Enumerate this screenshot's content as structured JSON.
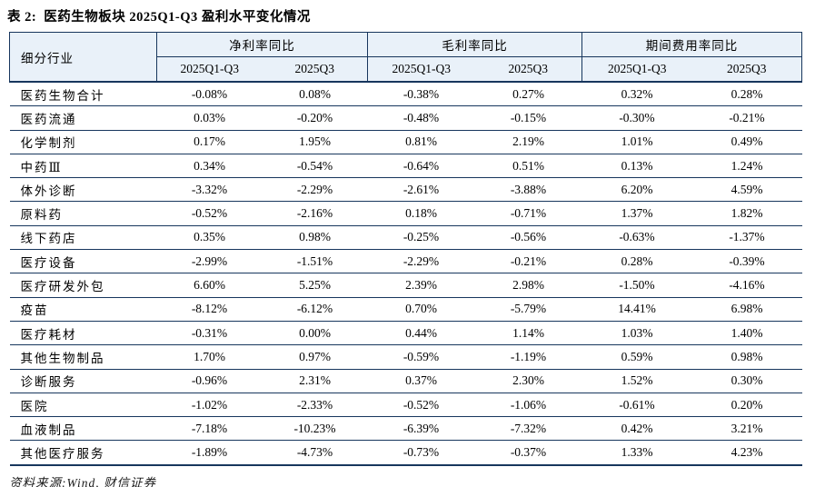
{
  "title": {
    "prefix": "表 2:",
    "text": "医药生物板块 2025Q1-Q3 盈利水平变化情况"
  },
  "table": {
    "row_header": "细分行业",
    "groups": [
      {
        "label": "净利率同比",
        "sub": [
          "2025Q1-Q3",
          "2025Q3"
        ]
      },
      {
        "label": "毛利率同比",
        "sub": [
          "2025Q1-Q3",
          "2025Q3"
        ]
      },
      {
        "label": "期间费用率同比",
        "sub": [
          "2025Q1-Q3",
          "2025Q3"
        ]
      }
    ],
    "rows": [
      {
        "label": "医药生物合计",
        "values": [
          "-0.08%",
          "0.08%",
          "-0.38%",
          "0.27%",
          "0.32%",
          "0.28%"
        ]
      },
      {
        "label": "医药流通",
        "values": [
          "0.03%",
          "-0.20%",
          "-0.48%",
          "-0.15%",
          "-0.30%",
          "-0.21%"
        ]
      },
      {
        "label": "化学制剂",
        "values": [
          "0.17%",
          "1.95%",
          "0.81%",
          "2.19%",
          "1.01%",
          "0.49%"
        ]
      },
      {
        "label": "中药Ⅲ",
        "values": [
          "0.34%",
          "-0.54%",
          "-0.64%",
          "0.51%",
          "0.13%",
          "1.24%"
        ]
      },
      {
        "label": "体外诊断",
        "values": [
          "-3.32%",
          "-2.29%",
          "-2.61%",
          "-3.88%",
          "6.20%",
          "4.59%"
        ]
      },
      {
        "label": "原料药",
        "values": [
          "-0.52%",
          "-2.16%",
          "0.18%",
          "-0.71%",
          "1.37%",
          "1.82%"
        ]
      },
      {
        "label": "线下药店",
        "values": [
          "0.35%",
          "0.98%",
          "-0.25%",
          "-0.56%",
          "-0.63%",
          "-1.37%"
        ]
      },
      {
        "label": "医疗设备",
        "values": [
          "-2.99%",
          "-1.51%",
          "-2.29%",
          "-0.21%",
          "0.28%",
          "-0.39%"
        ]
      },
      {
        "label": "医疗研发外包",
        "values": [
          "6.60%",
          "5.25%",
          "2.39%",
          "2.98%",
          "-1.50%",
          "-4.16%"
        ]
      },
      {
        "label": "疫苗",
        "values": [
          "-8.12%",
          "-6.12%",
          "0.70%",
          "-5.79%",
          "14.41%",
          "6.98%"
        ]
      },
      {
        "label": "医疗耗材",
        "values": [
          "-0.31%",
          "0.00%",
          "0.44%",
          "1.14%",
          "1.03%",
          "1.40%"
        ]
      },
      {
        "label": "其他生物制品",
        "values": [
          "1.70%",
          "0.97%",
          "-0.59%",
          "-1.19%",
          "0.59%",
          "0.98%"
        ]
      },
      {
        "label": "诊断服务",
        "values": [
          "-0.96%",
          "2.31%",
          "0.37%",
          "2.30%",
          "1.52%",
          "0.30%"
        ]
      },
      {
        "label": "医院",
        "values": [
          "-1.02%",
          "-2.33%",
          "-0.52%",
          "-1.06%",
          "-0.61%",
          "0.20%"
        ]
      },
      {
        "label": "血液制品",
        "values": [
          "-7.18%",
          "-10.23%",
          "-6.39%",
          "-7.32%",
          "0.42%",
          "3.21%"
        ]
      },
      {
        "label": "其他医疗服务",
        "values": [
          "-1.89%",
          "-4.73%",
          "-0.73%",
          "-0.37%",
          "1.33%",
          "4.23%"
        ]
      }
    ]
  },
  "footer": {
    "source": "资料来源:Wind, 财信证券"
  },
  "colors": {
    "border": "#17365D",
    "header_bg": "#E9F1F9",
    "text": "#000000"
  }
}
